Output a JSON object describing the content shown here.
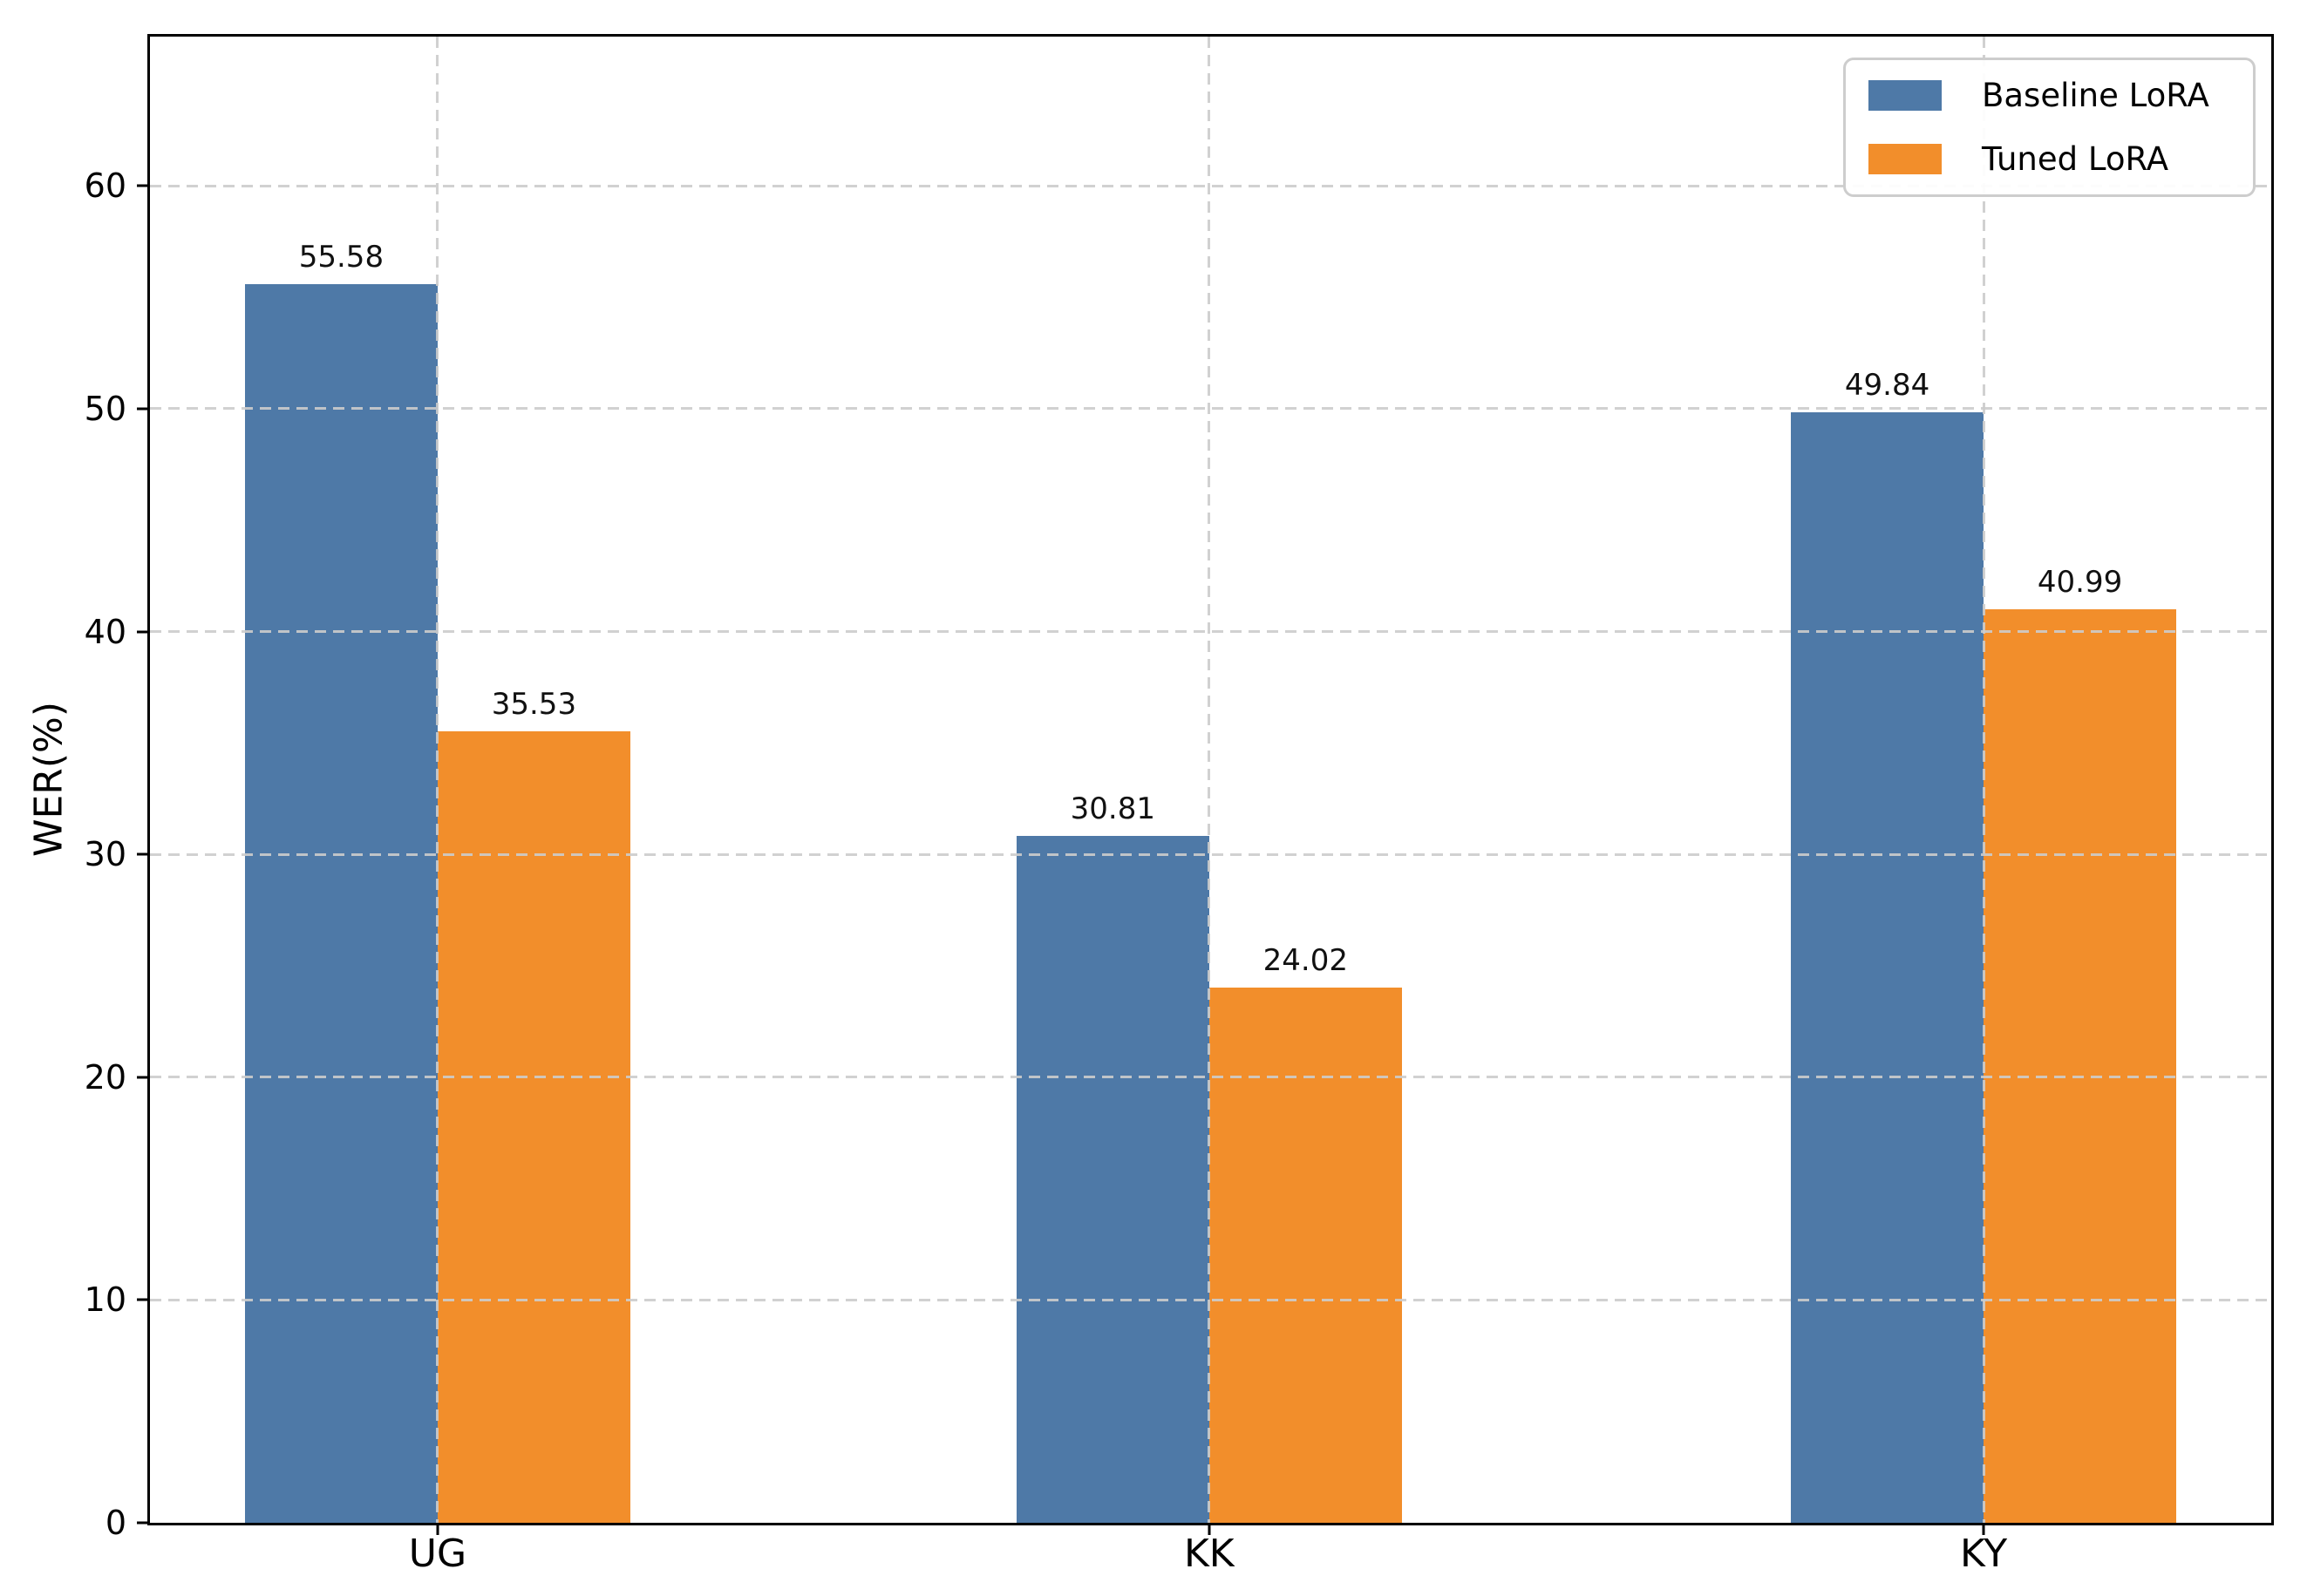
{
  "chart_data": {
    "type": "bar",
    "categories": [
      "UG",
      "KK",
      "KY"
    ],
    "series": [
      {
        "name": "Baseline LoRA",
        "color": "#4E79A7",
        "values": [
          55.58,
          30.81,
          49.84
        ]
      },
      {
        "name": "Tuned LoRA",
        "color": "#F28E2B",
        "values": [
          35.53,
          24.02,
          40.99
        ]
      }
    ],
    "bar_value_labels": [
      [
        "55.58",
        "30.81",
        "49.84"
      ],
      [
        "35.53",
        "24.02",
        "40.99"
      ]
    ],
    "title": "",
    "xlabel": "",
    "ylabel": "WER(%)",
    "ylim": [
      0,
      66.7
    ],
    "yticks": [
      0,
      10,
      20,
      30,
      40,
      50,
      60
    ],
    "ytick_labels": [
      "0",
      "10",
      "20",
      "30",
      "40",
      "50",
      "60"
    ],
    "grid": {
      "style": "dashed",
      "axes": "both",
      "color": "#cccccc",
      "drawn_over_bars": true
    },
    "frame": {
      "visible": true,
      "color": "#000000"
    },
    "legend": {
      "position": "upper right",
      "entries": [
        "Baseline LoRA",
        "Tuned LoRA"
      ]
    }
  }
}
